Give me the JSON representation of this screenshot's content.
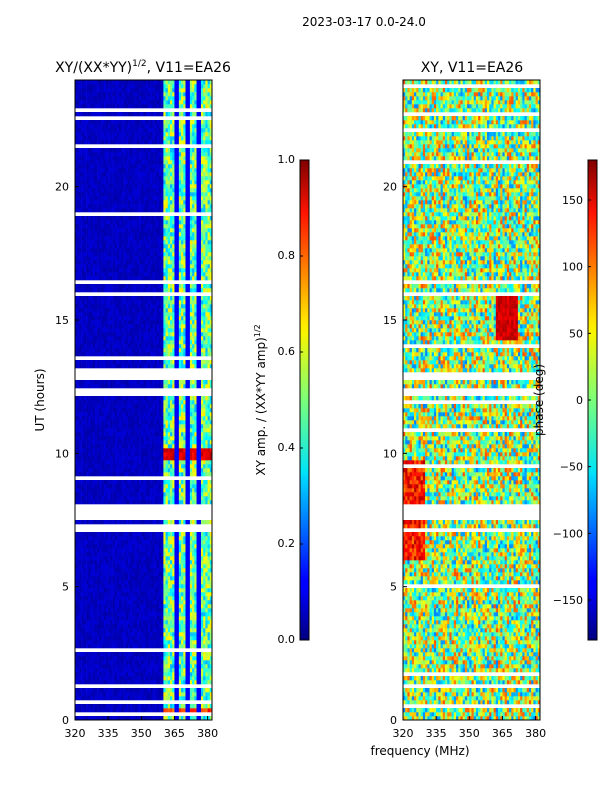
{
  "figure": {
    "suptitle": "2023-03-17 0.0-24.0",
    "shared_xlabel": "frequency (MHz)"
  },
  "chart_data": [
    {
      "type": "heatmap",
      "title_main": "XY/(XX*YY)",
      "title_exp": "1/2",
      "title_suffix": ", V11=EA26",
      "xlabel": "frequency (MHz)",
      "ylabel": "UT (hours)",
      "xlim": [
        320,
        382
      ],
      "ylim": [
        0,
        24
      ],
      "xticks": [
        320,
        335,
        350,
        365,
        380
      ],
      "yticks": [
        0,
        5,
        10,
        15,
        20
      ],
      "colorbar": {
        "label_main": "XY amp. / (XX*YY amp)",
        "label_exp": "1/2",
        "range": [
          0.0,
          1.0
        ],
        "ticks": [
          "0.0",
          "0.2",
          "0.4",
          "0.6",
          "0.8",
          "1.0"
        ],
        "colormap": "jet"
      },
      "flagged_hours": [
        [
          7.5,
          8.1
        ],
        [
          12.2,
          12.5
        ],
        [
          12.75,
          13.05
        ],
        [
          15.9,
          16.1
        ],
        [
          16.3,
          16.5
        ]
      ],
      "high_amp_bands_mhz": [
        [
          360,
          363
        ],
        [
          363,
          366
        ],
        [
          367,
          370
        ],
        [
          372,
          375
        ],
        [
          376,
          379
        ]
      ],
      "notes": "Low amplitude (~0.05) below 360 MHz; amplitude 0.4-0.6 in 360-380 MHz; peaks near 0.9 around UT 9.8-10.1 h"
    },
    {
      "type": "heatmap",
      "title": "XY, V11=EA26",
      "xlabel": "frequency (MHz)",
      "ylabel": "",
      "xlim": [
        320,
        382
      ],
      "ylim": [
        0,
        24
      ],
      "xticks": [
        320,
        335,
        350,
        365,
        380
      ],
      "yticks": [
        0,
        5,
        10,
        15,
        20
      ],
      "colorbar": {
        "label": "phase (deg)",
        "range": [
          -180,
          180
        ],
        "ticks": [
          "150",
          "100",
          "50",
          "0",
          "−50",
          "−100",
          "−150"
        ],
        "colormap": "jet"
      },
      "flagged_hours": [
        [
          7.5,
          8.1
        ],
        [
          12.2,
          12.5
        ],
        [
          12.75,
          13.05
        ],
        [
          15.9,
          16.1
        ],
        [
          16.3,
          16.5
        ]
      ],
      "notes": "Noisy phase across band; coherent red phase patch near 365 MHz at UT 14.5-16 h"
    }
  ]
}
